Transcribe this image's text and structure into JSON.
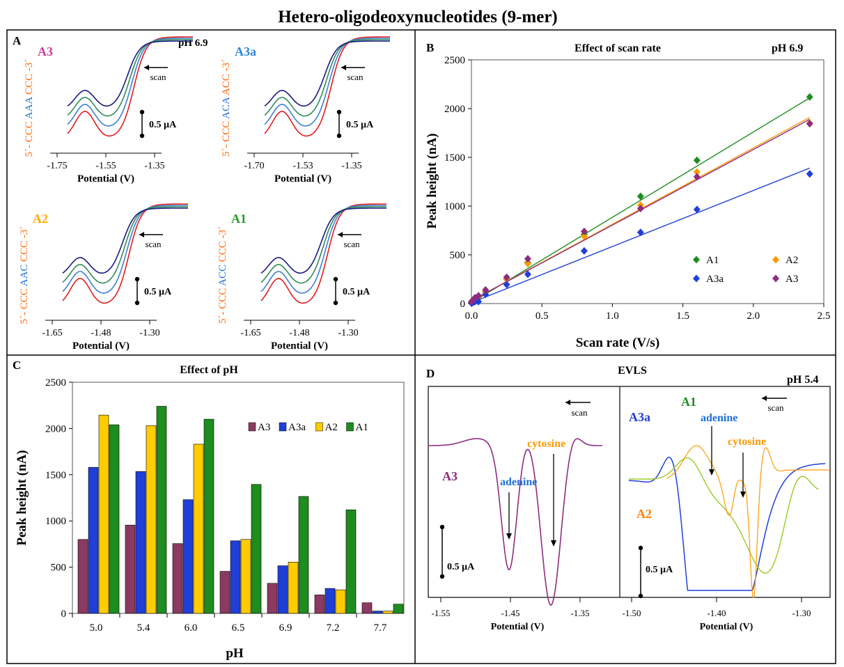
{
  "figure_title": "Hetero-oligodeoxynucleotides (9-mer)",
  "colors": {
    "red": "#e41a1c",
    "blue": "#1f3fd8",
    "steelblue": "#3f7fd0",
    "green": "#2e8b57",
    "navy": "#1a1a80",
    "orange": "#ff9900",
    "magenta": "#d03a9a",
    "purple": "#8e2c7e",
    "maroon": "#8b3a62",
    "darkgreen": "#1e8c1e",
    "yellow": "#ffcc00",
    "lime": "#99cc22",
    "seq_orange": "#ff6600",
    "seq_blue": "#1e6fd9",
    "a3a_label": "#2e86de",
    "a2_label": "#ffaa00",
    "a1_label": "#2a9a2a",
    "a2_d_label": "#ff7f00",
    "cytosine_label": "#ff9900",
    "adenine_label": "#1e6fd9"
  },
  "panelA": {
    "panel_label": "A",
    "scan_label": "scan",
    "scale_label": "0.5 µA",
    "ph_label": "pH 6.9",
    "xlabel": "Potential (V)",
    "subplots": [
      {
        "name": "A3",
        "label_color": "#d03a9a",
        "seq": [
          {
            "t": "5´- CCC ",
            "c": "#ff6600"
          },
          {
            "t": "AAA ",
            "c": "#1e6fd9"
          },
          {
            "t": "CCC -3´",
            "c": "#ff6600"
          }
        ],
        "ticks": [
          "-1.75",
          "-1.55",
          "-1.35"
        ]
      },
      {
        "name": "A3a",
        "label_color": "#2e86de",
        "seq": [
          {
            "t": "5´- CCC ",
            "c": "#ff6600"
          },
          {
            "t": "ACA ",
            "c": "#1e6fd9"
          },
          {
            "t": "ACC -3´",
            "c": "#ff6600"
          }
        ],
        "ticks": [
          "-1.70",
          "-1.53",
          "-1.35"
        ]
      },
      {
        "name": "A2",
        "label_color": "#ffaa00",
        "seq": [
          {
            "t": "5´- CCC ",
            "c": "#ff6600"
          },
          {
            "t": "AAC ",
            "c": "#1e6fd9"
          },
          {
            "t": "CCC -3´",
            "c": "#ff6600"
          }
        ],
        "ticks": [
          "-1.65",
          "-1.48",
          "-1.30"
        ]
      },
      {
        "name": "A1",
        "label_color": "#2a9a2a",
        "seq": [
          {
            "t": "5´- CCC ",
            "c": "#ff6600"
          },
          {
            "t": "ACC ",
            "c": "#1e6fd9"
          },
          {
            "t": "CCC -3´",
            "c": "#ff6600"
          }
        ],
        "ticks": [
          "-1.65",
          "-1.48",
          "-1.30"
        ]
      }
    ]
  },
  "panelB": {
    "panel_label": "B",
    "ph_label": "pH 6.9"
  },
  "panelC": {
    "panel_label": "C"
  },
  "panelD": {
    "panel_label": "D",
    "title": "EVLS",
    "ph_label": "pH 5.4",
    "scan_label": "scan",
    "scale_label": "0.5 µA",
    "xlabel": "Potential (V)",
    "left": {
      "ticks": [
        "-1.55",
        "-1.45",
        "-1.35"
      ],
      "curve_label": "A3",
      "annotations": [
        "adenine",
        "cytosine"
      ]
    },
    "right": {
      "ticks": [
        "-1.50",
        "-1.40",
        "-1.30"
      ],
      "curve_labels": [
        "A3a",
        "A1",
        "A2"
      ],
      "annotations": [
        "adenine",
        "cytosine"
      ]
    }
  },
  "chart_data": [
    {
      "type": "scatter",
      "title": "Effect of scan rate",
      "xlabel": "Scan rate (V/s)",
      "ylabel": "Peak height (nA)",
      "xlim": [
        0,
        2.5
      ],
      "ylim": [
        0,
        2500
      ],
      "x_ticks": [
        "0.0",
        "0.5",
        "1.0",
        "1.5",
        "2.0",
        "2.5"
      ],
      "y_ticks": [
        "0",
        "500",
        "1000",
        "1500",
        "2000",
        "2500"
      ],
      "legend_position": "bottom-right",
      "series": [
        {
          "name": "A1",
          "color": "#1e8c1e",
          "x": [
            0,
            0.01,
            0.025,
            0.05,
            0.1,
            0.25,
            0.4,
            0.8,
            1.2,
            1.6,
            2.4
          ],
          "y": [
            15,
            30,
            45,
            70,
            120,
            250,
            420,
            710,
            1100,
            1470,
            2120
          ],
          "fit": [
            [
              0,
              10
            ],
            [
              2.4,
              2110
            ]
          ]
        },
        {
          "name": "A2",
          "color": "#ff9900",
          "x": [
            0,
            0.01,
            0.025,
            0.05,
            0.1,
            0.25,
            0.4,
            0.8,
            1.2,
            1.6,
            2.4
          ],
          "y": [
            15,
            30,
            45,
            75,
            125,
            255,
            410,
            690,
            1010,
            1350,
            1850
          ],
          "fit": [
            [
              0,
              30
            ],
            [
              2.4,
              1910
            ]
          ]
        },
        {
          "name": "A3a",
          "color": "#1f3fd8",
          "x": [
            0,
            0.01,
            0.025,
            0.05,
            0.1,
            0.25,
            0.4,
            0.8,
            1.2,
            1.6,
            2.4
          ],
          "y": [
            5,
            10,
            20,
            20,
            95,
            195,
            300,
            540,
            730,
            965,
            1330
          ],
          "fit": [
            [
              0,
              10
            ],
            [
              2.4,
              1390
            ]
          ]
        },
        {
          "name": "A3",
          "color": "#8e2c7e",
          "x": [
            0,
            0.01,
            0.025,
            0.05,
            0.1,
            0.25,
            0.4,
            0.8,
            1.2,
            1.6,
            2.4
          ],
          "y": [
            20,
            35,
            60,
            80,
            140,
            270,
            460,
            740,
            975,
            1300,
            1845
          ],
          "fit": [
            [
              0,
              30
            ],
            [
              2.4,
              1890
            ]
          ]
        }
      ]
    },
    {
      "type": "bar",
      "title": "Effect of pH",
      "xlabel": "pH",
      "ylabel": "Peak height (nA)",
      "ylim": [
        0,
        2500
      ],
      "y_ticks": [
        "0",
        "500",
        "1000",
        "1500",
        "2000",
        "2500"
      ],
      "categories": [
        "5.0",
        "5.4",
        "6.0",
        "6.5",
        "6.9",
        "7.2",
        "7.7"
      ],
      "legend_position": "top-right",
      "series": [
        {
          "name": "A3",
          "color": "#8b3a62",
          "values": [
            800,
            955,
            755,
            455,
            325,
            200,
            115
          ]
        },
        {
          "name": "A3a",
          "color": "#1f3fd8",
          "values": [
            1580,
            1535,
            1230,
            785,
            515,
            270,
            25
          ]
        },
        {
          "name": "A2",
          "color": "#ffcc00",
          "values": [
            2145,
            2030,
            1830,
            800,
            555,
            255,
            25
          ]
        },
        {
          "name": "A1",
          "color": "#1e8c1e",
          "values": [
            2040,
            2240,
            2100,
            1395,
            1265,
            1120,
            100
          ]
        }
      ]
    }
  ]
}
